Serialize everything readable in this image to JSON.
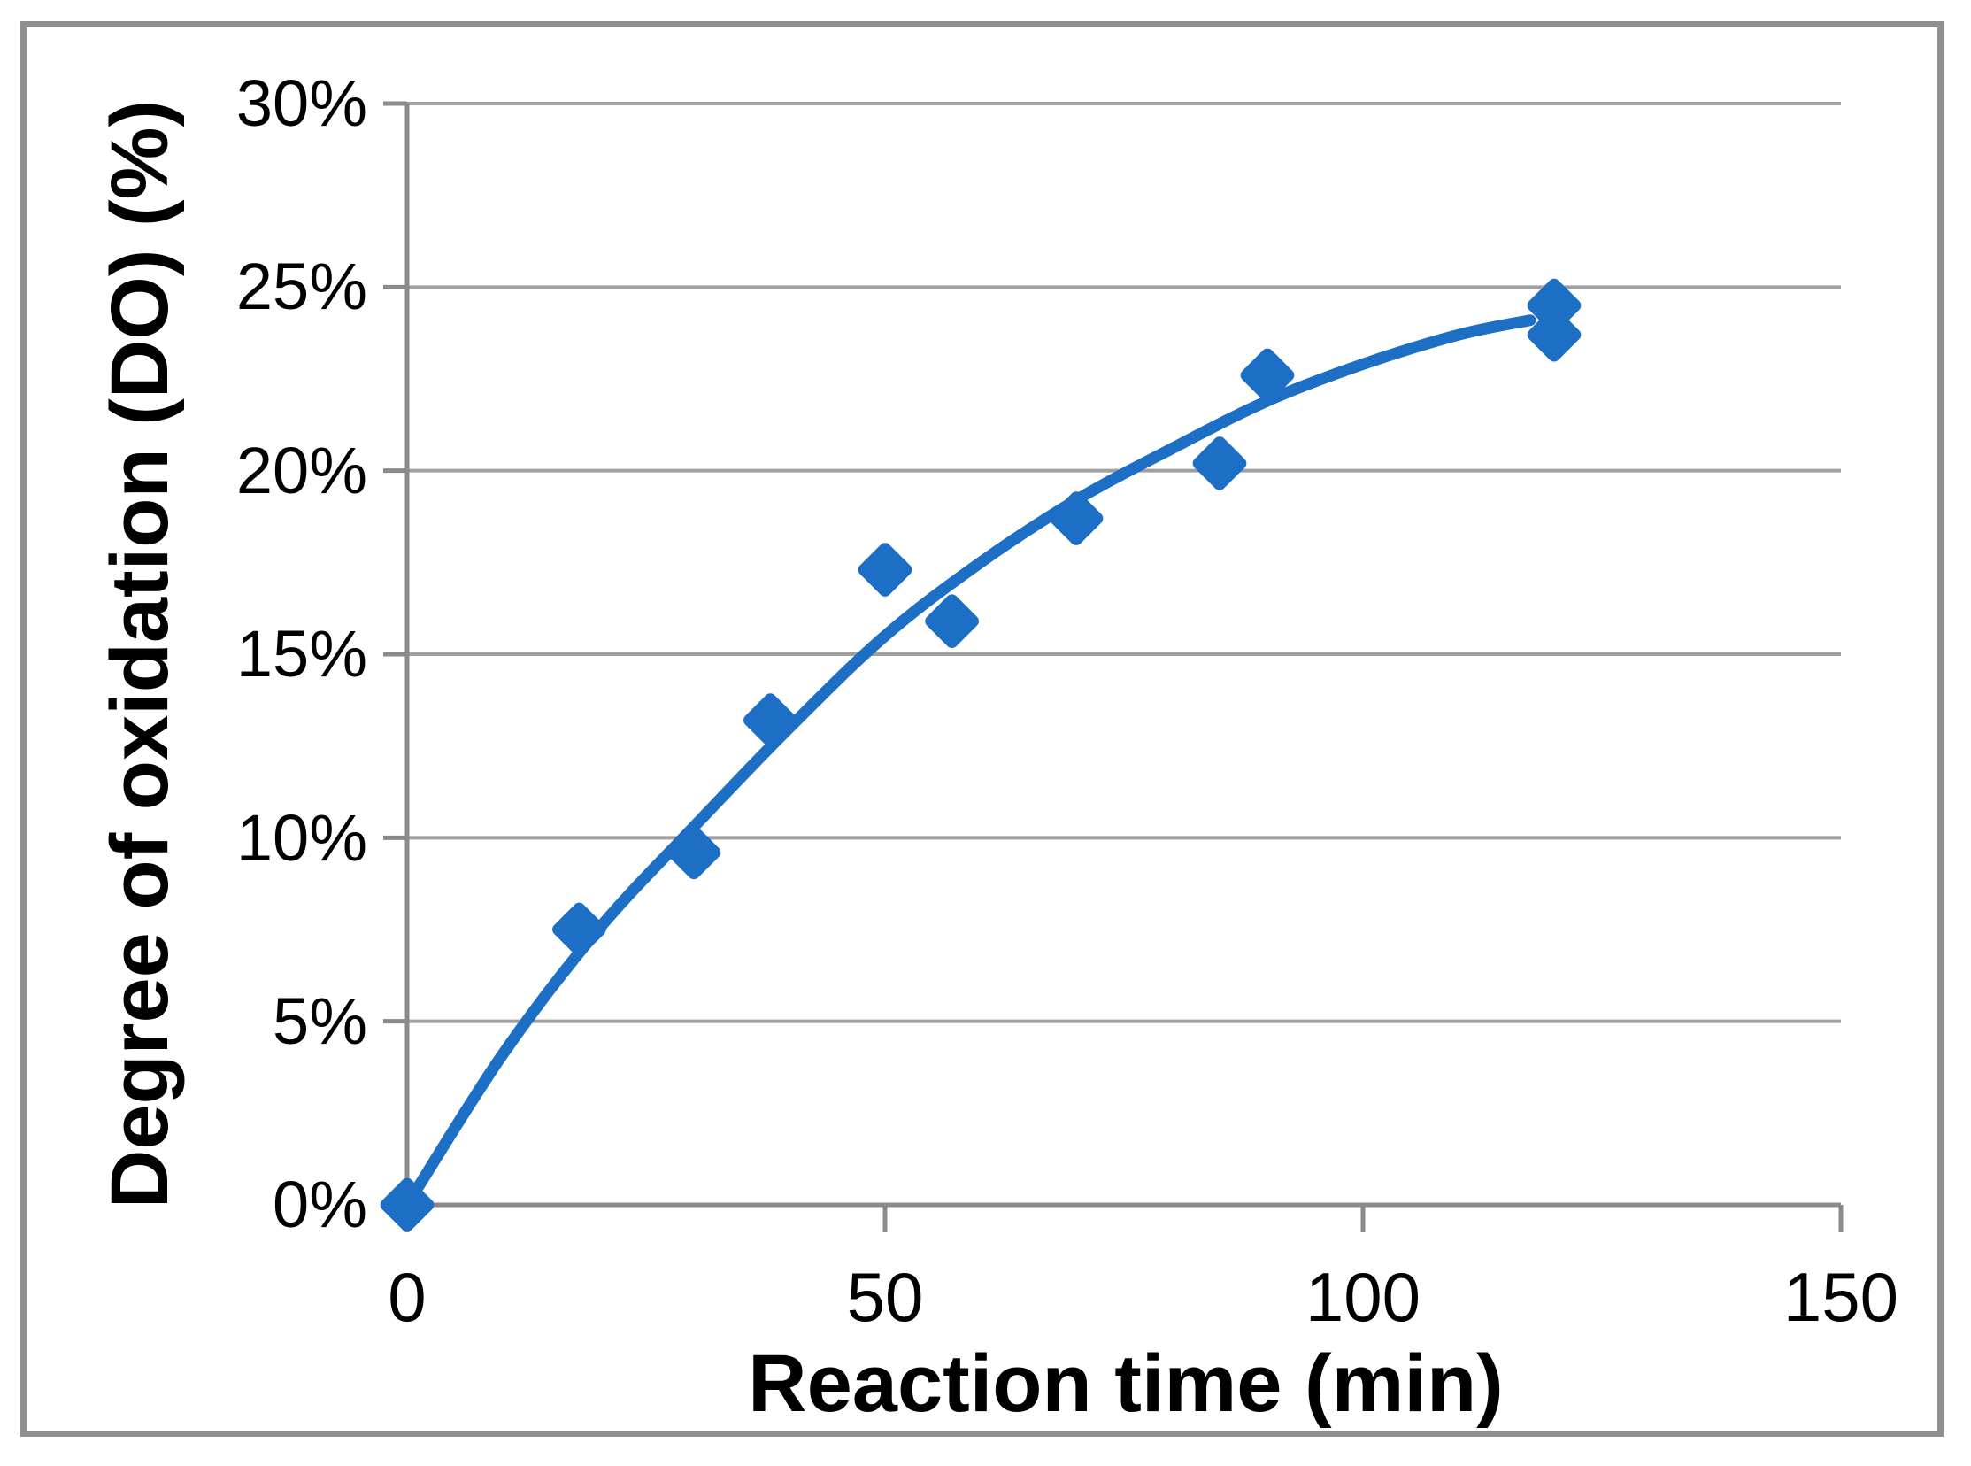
{
  "chart_data": {
    "type": "scatter",
    "title": "",
    "xlabel": "Reaction time (min)",
    "ylabel": "Degree of oxidation (DO) (%)",
    "xlim": [
      0,
      150
    ],
    "ylim": [
      0,
      30
    ],
    "y_unit": "%",
    "grid": "horizontal-only",
    "legend_position": "none",
    "x_ticks": [
      {
        "value": 0,
        "label": "0"
      },
      {
        "value": 50,
        "label": "50"
      },
      {
        "value": 100,
        "label": "100"
      },
      {
        "value": 150,
        "label": "150"
      }
    ],
    "y_ticks": [
      {
        "value": 30,
        "label": "30%"
      },
      {
        "value": 25,
        "label": "25%"
      },
      {
        "value": 20,
        "label": "20%"
      },
      {
        "value": 15,
        "label": "15%"
      },
      {
        "value": 10,
        "label": "10%"
      },
      {
        "value": 5,
        "label": "5%"
      },
      {
        "value": 0,
        "label": "0%"
      }
    ],
    "series": [
      {
        "name": "degree-of-oxidation-points",
        "type": "scatter",
        "marker": "diamond",
        "color": "#1C6FC5",
        "points": [
          {
            "x": 0,
            "y": 0.0
          },
          {
            "x": 18,
            "y": 7.5
          },
          {
            "x": 30,
            "y": 9.6
          },
          {
            "x": 38,
            "y": 13.2
          },
          {
            "x": 50,
            "y": 17.3
          },
          {
            "x": 57,
            "y": 15.9
          },
          {
            "x": 70,
            "y": 18.7
          },
          {
            "x": 85,
            "y": 20.2
          },
          {
            "x": 90,
            "y": 22.6
          },
          {
            "x": 120,
            "y": 24.5
          },
          {
            "x": 120,
            "y": 23.7
          }
        ]
      },
      {
        "name": "trendline",
        "type": "smooth-line",
        "color": "#1C6FC5",
        "points": [
          [
            0,
            0.0
          ],
          [
            10,
            4.1
          ],
          [
            20,
            7.5
          ],
          [
            30,
            10.3
          ],
          [
            40,
            13.0
          ],
          [
            50,
            15.5
          ],
          [
            60,
            17.5
          ],
          [
            70,
            19.2
          ],
          [
            80,
            20.6
          ],
          [
            90,
            21.9
          ],
          [
            100,
            22.9
          ],
          [
            110,
            23.7
          ],
          [
            117.5,
            24.1
          ]
        ]
      }
    ]
  },
  "colors": {
    "series_blue": "#1C6FC5",
    "gridline": "#A0A0A0",
    "axis_line": "#8A8A8A",
    "outer_frame": "#8F8F8F",
    "text": "#000000",
    "background": "#FFFFFF"
  }
}
